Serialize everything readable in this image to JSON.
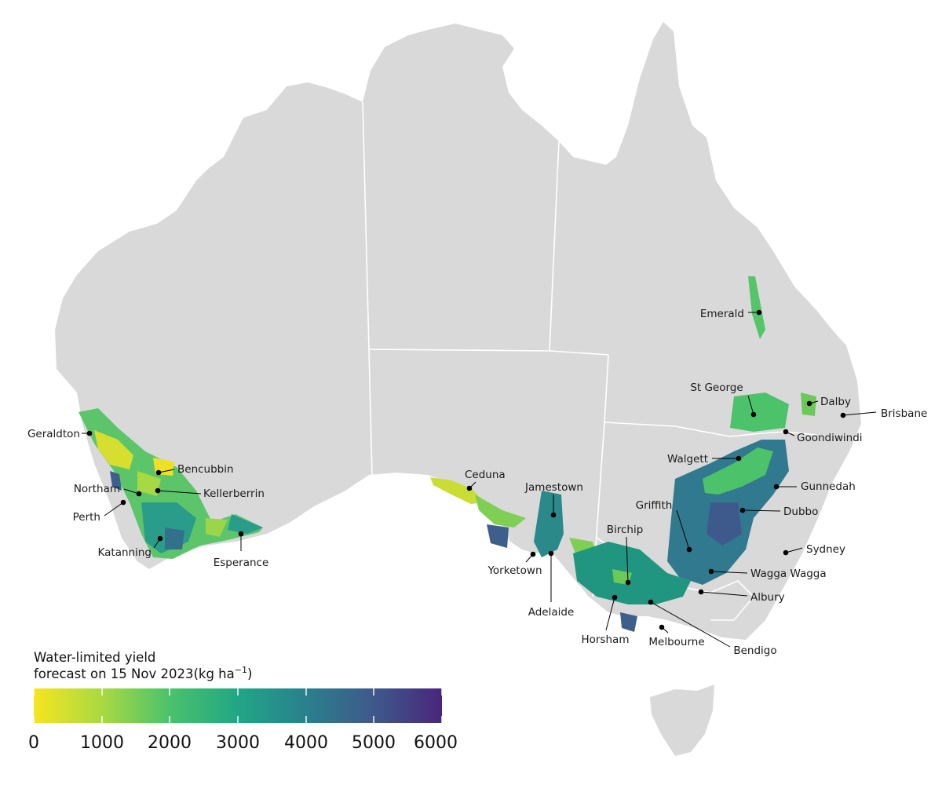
{
  "map": {
    "colors": {
      "land": "#d9d9d9",
      "border": "#ffffff",
      "scale": [
        "#f7e51f",
        "#a7d942",
        "#4cc26b",
        "#21a685",
        "#2a7f8d",
        "#3e5a8c",
        "#49267c"
      ]
    },
    "towns": [
      {
        "name": "Geraldton"
      },
      {
        "name": "Bencubbin"
      },
      {
        "name": "Northam"
      },
      {
        "name": "Kellerberrin"
      },
      {
        "name": "Perth"
      },
      {
        "name": "Katanning"
      },
      {
        "name": "Esperance"
      },
      {
        "name": "Ceduna"
      },
      {
        "name": "Jamestown"
      },
      {
        "name": "Yorketown"
      },
      {
        "name": "Adelaide"
      },
      {
        "name": "Birchip"
      },
      {
        "name": "Horsham"
      },
      {
        "name": "Melbourne"
      },
      {
        "name": "Bendigo"
      },
      {
        "name": "Griffith"
      },
      {
        "name": "Wagga Wagga"
      },
      {
        "name": "Albury"
      },
      {
        "name": "Dubbo"
      },
      {
        "name": "Sydney"
      },
      {
        "name": "Gunnedah"
      },
      {
        "name": "Walgett"
      },
      {
        "name": "Goondiwindi"
      },
      {
        "name": "St George"
      },
      {
        "name": "Dalby"
      },
      {
        "name": "Brisbane"
      },
      {
        "name": "Emerald"
      }
    ]
  },
  "legend": {
    "title_line1": "Water-limited yield",
    "title_line2": "forecast on 15 Nov 2023(kg ha",
    "unit_superscript": "−1",
    "title_close": ")",
    "min": 0,
    "max": 6000,
    "ticks": [
      "0",
      "1000",
      "2000",
      "3000",
      "4000",
      "5000",
      "6000"
    ]
  }
}
